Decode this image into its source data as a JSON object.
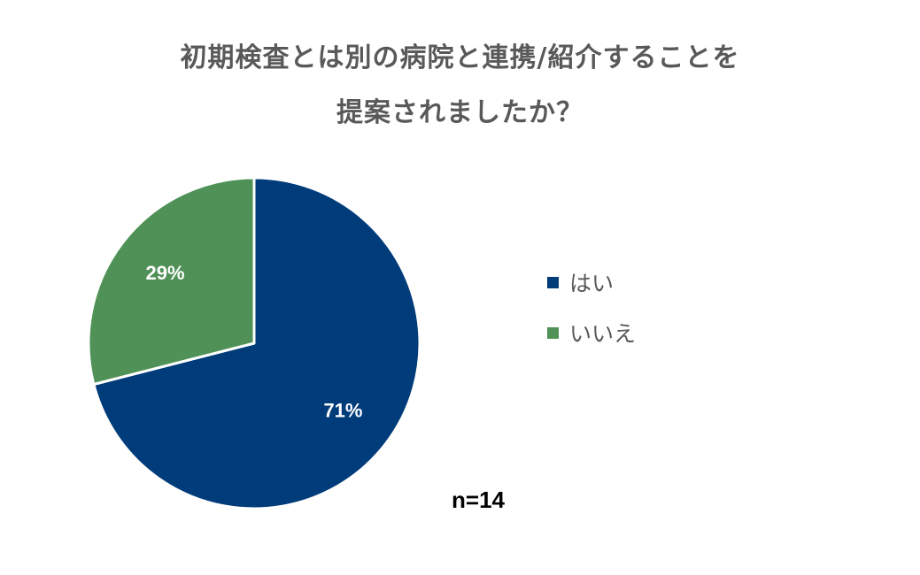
{
  "chart_data": {
    "type": "pie",
    "title_lines": [
      "初期検査とは別の病院と連携/紹介することを",
      "提案されましたか？"
    ],
    "slices": [
      {
        "name": "はい",
        "value": 71,
        "label": "71%",
        "color": "#003B7A"
      },
      {
        "name": "いいえ",
        "value": 29,
        "label": "29%",
        "color": "#4F9157"
      }
    ],
    "legend_placement": "right",
    "annotation": "n=14"
  }
}
